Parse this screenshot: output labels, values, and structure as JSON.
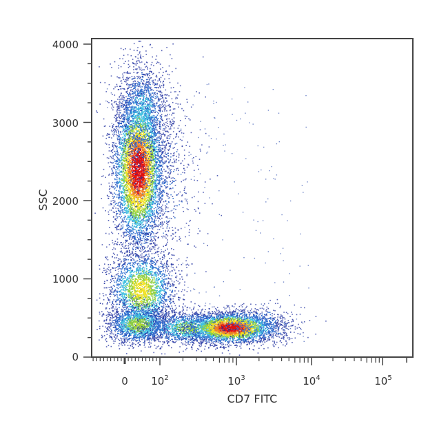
{
  "chart_data": {
    "type": "scatter",
    "subtype": "flow-cytometry-density-dot-plot",
    "title": "",
    "xlabel": "CD7 FITC",
    "ylabel": "SSC",
    "x_scale": "biexponential",
    "y_scale": "linear",
    "ylim": [
      0,
      4000
    ],
    "y_ticks": [
      0,
      1000,
      2000,
      3000,
      4000
    ],
    "y_tick_labels": [
      "0",
      "1000",
      "2000",
      "3000",
      "4000"
    ],
    "x_ticks": [
      0,
      100,
      1000,
      10000,
      100000
    ],
    "x_tick_labels": [
      "0",
      "10^2",
      "10^3",
      "10^4",
      "10^5"
    ],
    "grid": false,
    "legend": null,
    "color_scale": [
      "#1f2f9f",
      "#2f6fd0",
      "#40c0e0",
      "#8fd040",
      "#f0e020",
      "#f08020",
      "#e01010"
    ],
    "populations": [
      {
        "name": "high-SSC CD7-negative cluster",
        "x_center": 30,
        "y_center": 2400,
        "y_range": [
          1500,
          3950
        ],
        "peak_density": "high (red core)"
      },
      {
        "name": "mid-SSC CD7-negative cluster",
        "x_center": 40,
        "y_center": 800,
        "y_range": [
          500,
          1200
        ],
        "peak_density": "medium (green/yellow)"
      },
      {
        "name": "low-SSC CD7-positive cluster",
        "x_center": 900,
        "y_center": 330,
        "y_range": [
          150,
          600
        ],
        "peak_density": "high (red core)"
      },
      {
        "name": "low-SSC CD7-negative tail",
        "x_center": 30,
        "y_center": 380,
        "y_range": [
          150,
          600
        ],
        "peak_density": "medium"
      }
    ]
  },
  "axes": {
    "x_label": "CD7 FITC",
    "y_label": "SSC",
    "y_ticks": [
      "0",
      "1000",
      "2000",
      "3000",
      "4000"
    ],
    "x_ticks": [
      {
        "base": "0",
        "exp": ""
      },
      {
        "base": "10",
        "exp": "2"
      },
      {
        "base": "10",
        "exp": "3"
      },
      {
        "base": "10",
        "exp": "4"
      },
      {
        "base": "10",
        "exp": "5"
      }
    ]
  }
}
